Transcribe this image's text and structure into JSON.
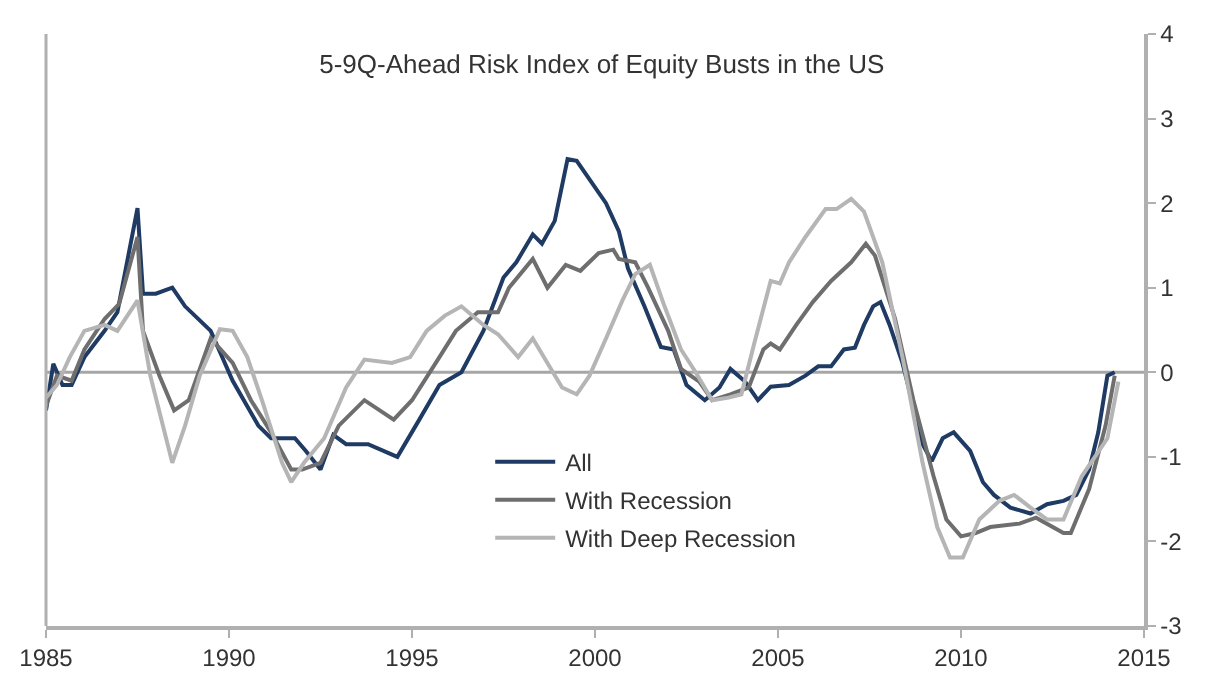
{
  "chart_data": {
    "type": "line",
    "title": "5-9Q-Ahead Risk Index of Equity Busts in the US",
    "xlim": [
      1985,
      2015
    ],
    "xticks": [
      1985,
      1990,
      1995,
      2000,
      2005,
      2010,
      2015
    ],
    "ylim": [
      -3,
      4
    ],
    "yticks": [
      -3,
      -2,
      -1,
      0,
      1,
      2,
      3,
      4
    ],
    "grid": false,
    "legend": "bottom",
    "marker": "none",
    "line_style": "solid",
    "ref_lines": [
      {
        "axis": "y",
        "value": 0,
        "color": "#a6a6a6"
      }
    ],
    "series": [
      {
        "name": "All",
        "color": "#1f3b63",
        "x": [
          1985.0,
          1985.2,
          1985.45,
          1985.7,
          1986.05,
          1986.6,
          1986.95,
          1987.5,
          1987.65,
          1988.0,
          1988.45,
          1988.8,
          1989.5,
          1990.1,
          1990.8,
          1991.15,
          1991.8,
          1992.1,
          1992.5,
          1992.85,
          1993.2,
          1993.8,
          1994.6,
          1995.2,
          1995.75,
          1996.35,
          1996.95,
          1997.5,
          1997.85,
          1998.3,
          1998.55,
          1998.9,
          1999.25,
          1999.5,
          2000.3,
          2000.65,
          2000.9,
          2001.35,
          2001.8,
          2002.15,
          2002.5,
          2003.0,
          2003.4,
          2003.7,
          2004.1,
          2004.45,
          2004.8,
          2005.3,
          2005.75,
          2006.1,
          2006.45,
          2006.8,
          2007.1,
          2007.35,
          2007.6,
          2007.8,
          2008.05,
          2008.4,
          2008.75,
          2008.95,
          2009.2,
          2009.5,
          2009.8,
          2010.25,
          2010.6,
          2010.9,
          2011.35,
          2011.9,
          2012.35,
          2012.8,
          2013.15,
          2013.5,
          2013.75,
          2014.0,
          2014.2
        ],
        "values": [
          -0.45,
          0.1,
          -0.15,
          -0.15,
          0.18,
          0.49,
          0.71,
          1.94,
          0.93,
          0.93,
          1.0,
          0.78,
          0.49,
          -0.1,
          -0.63,
          -0.78,
          -0.78,
          -0.93,
          -1.15,
          -0.74,
          -0.85,
          -0.85,
          -1.0,
          -0.56,
          -0.15,
          0.0,
          0.49,
          1.12,
          1.3,
          1.63,
          1.52,
          1.79,
          2.52,
          2.5,
          2.0,
          1.67,
          1.23,
          0.78,
          0.3,
          0.27,
          -0.15,
          -0.33,
          -0.18,
          0.04,
          -0.11,
          -0.33,
          -0.17,
          -0.15,
          -0.04,
          0.07,
          0.07,
          0.27,
          0.29,
          0.56,
          0.78,
          0.83,
          0.56,
          0.11,
          -0.49,
          -0.85,
          -1.05,
          -0.78,
          -0.71,
          -0.93,
          -1.3,
          -1.45,
          -1.6,
          -1.67,
          -1.56,
          -1.52,
          -1.45,
          -1.15,
          -0.71,
          -0.04,
          0.0
        ]
      },
      {
        "name": "With Recession",
        "color": "#6e6e6e",
        "x": [
          1985.0,
          1985.3,
          1985.7,
          1986.05,
          1986.6,
          1987.0,
          1987.5,
          1987.65,
          1988.1,
          1988.5,
          1988.9,
          1989.5,
          1990.1,
          1990.6,
          1991.15,
          1991.7,
          1992.0,
          1992.5,
          1993.0,
          1993.7,
          1994.5,
          1995.0,
          1995.75,
          1996.2,
          1996.8,
          1997.35,
          1997.65,
          1998.3,
          1998.7,
          1999.2,
          1999.6,
          2000.1,
          2000.5,
          2000.65,
          2001.1,
          2001.45,
          2002.0,
          2002.35,
          2002.85,
          2003.2,
          2003.7,
          2004.2,
          2004.6,
          2004.8,
          2005.05,
          2005.5,
          2005.95,
          2006.45,
          2007.0,
          2007.4,
          2007.65,
          2008.2,
          2008.7,
          2009.25,
          2009.6,
          2010.0,
          2010.4,
          2010.8,
          2011.6,
          2012.05,
          2012.8,
          2013.0,
          2013.5,
          2013.95,
          2014.2
        ],
        "values": [
          -0.4,
          -0.04,
          -0.1,
          0.27,
          0.63,
          0.81,
          1.6,
          0.49,
          -0.04,
          -0.45,
          -0.33,
          0.4,
          0.11,
          -0.33,
          -0.71,
          -1.15,
          -1.15,
          -1.07,
          -0.63,
          -0.33,
          -0.56,
          -0.33,
          0.18,
          0.49,
          0.71,
          0.71,
          1.0,
          1.34,
          1.0,
          1.27,
          1.2,
          1.41,
          1.45,
          1.34,
          1.3,
          1.0,
          0.49,
          0.04,
          -0.11,
          -0.33,
          -0.26,
          -0.18,
          0.27,
          0.34,
          0.27,
          0.56,
          0.83,
          1.08,
          1.3,
          1.52,
          1.38,
          0.63,
          -0.33,
          -1.23,
          -1.74,
          -1.94,
          -1.9,
          -1.83,
          -1.79,
          -1.72,
          -1.9,
          -1.9,
          -1.38,
          -0.63,
          -0.04
        ]
      },
      {
        "name": "With Deep Recession",
        "color": "#b5b5b5",
        "x": [
          1985.0,
          1985.3,
          1985.65,
          1986.05,
          1986.6,
          1986.95,
          1987.5,
          1987.85,
          1988.45,
          1988.8,
          1989.2,
          1989.75,
          1990.1,
          1990.5,
          1990.9,
          1991.45,
          1991.7,
          1992.05,
          1992.6,
          1993.2,
          1993.7,
          1994.45,
          1994.95,
          1995.4,
          1995.9,
          1996.35,
          1996.95,
          1997.35,
          1997.9,
          1998.3,
          1998.7,
          1999.1,
          1999.5,
          1999.85,
          2000.3,
          2000.75,
          2001.1,
          2001.5,
          2001.9,
          2002.35,
          2002.75,
          2003.2,
          2003.65,
          2004.0,
          2004.35,
          2004.8,
          2005.05,
          2005.3,
          2005.75,
          2006.3,
          2006.6,
          2007.0,
          2007.35,
          2007.85,
          2008.4,
          2008.95,
          2009.35,
          2009.7,
          2010.05,
          2010.5,
          2011.05,
          2011.45,
          2011.9,
          2012.35,
          2012.8,
          2013.3,
          2014.0,
          2014.3
        ],
        "values": [
          -0.3,
          -0.15,
          0.18,
          0.49,
          0.56,
          0.49,
          0.85,
          -0.04,
          -1.07,
          -0.63,
          -0.04,
          0.51,
          0.49,
          0.18,
          -0.33,
          -1.07,
          -1.3,
          -1.07,
          -0.78,
          -0.18,
          0.15,
          0.11,
          0.18,
          0.49,
          0.67,
          0.78,
          0.56,
          0.45,
          0.18,
          0.4,
          0.11,
          -0.18,
          -0.26,
          -0.04,
          0.4,
          0.85,
          1.16,
          1.27,
          0.78,
          0.27,
          0.0,
          -0.33,
          -0.3,
          -0.26,
          0.34,
          1.08,
          1.05,
          1.3,
          1.6,
          1.93,
          1.93,
          2.05,
          1.9,
          1.3,
          0.18,
          -1.07,
          -1.83,
          -2.19,
          -2.19,
          -1.74,
          -1.52,
          -1.45,
          -1.6,
          -1.74,
          -1.74,
          -1.23,
          -0.78,
          -0.11
        ]
      }
    ]
  }
}
